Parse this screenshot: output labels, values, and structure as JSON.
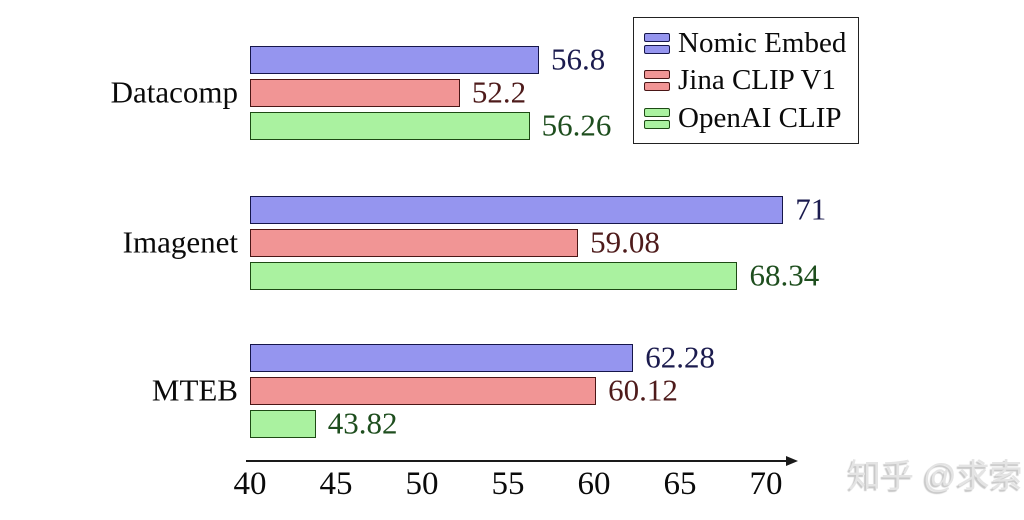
{
  "chart_data": {
    "type": "bar",
    "orientation": "horizontal",
    "title": "",
    "xlabel": "",
    "ylabel": "",
    "categories": [
      "Datacomp",
      "Imagenet",
      "MTEB"
    ],
    "series": [
      {
        "name": "Nomic Embed",
        "values": [
          56.8,
          71,
          62.28
        ],
        "value_labels": [
          "56.8",
          "71",
          "62.28"
        ],
        "fill": "#9595EF",
        "edge": "#16164A",
        "label_color": "#1B1B4E"
      },
      {
        "name": "Jina CLIP V1",
        "values": [
          52.2,
          59.08,
          60.12
        ],
        "value_labels": [
          "52.2",
          "59.08",
          "60.12"
        ],
        "fill": "#F19595",
        "edge": "#4A1616",
        "label_color": "#4E1B1B"
      },
      {
        "name": "OpenAI CLIP",
        "values": [
          56.26,
          68.34,
          43.82
        ],
        "value_labels": [
          "56.26",
          "68.34",
          "43.82"
        ],
        "fill": "#AAF2A0",
        "edge": "#1D4A14",
        "label_color": "#1E4E1E"
      }
    ],
    "xlim": [
      40,
      71.8
    ],
    "x_ticks": [
      "40",
      "45",
      "50",
      "55",
      "60",
      "65",
      "70"
    ],
    "grid": false,
    "legend_position": "top-right"
  },
  "watermark": {
    "text": "知乎 @求索"
  }
}
